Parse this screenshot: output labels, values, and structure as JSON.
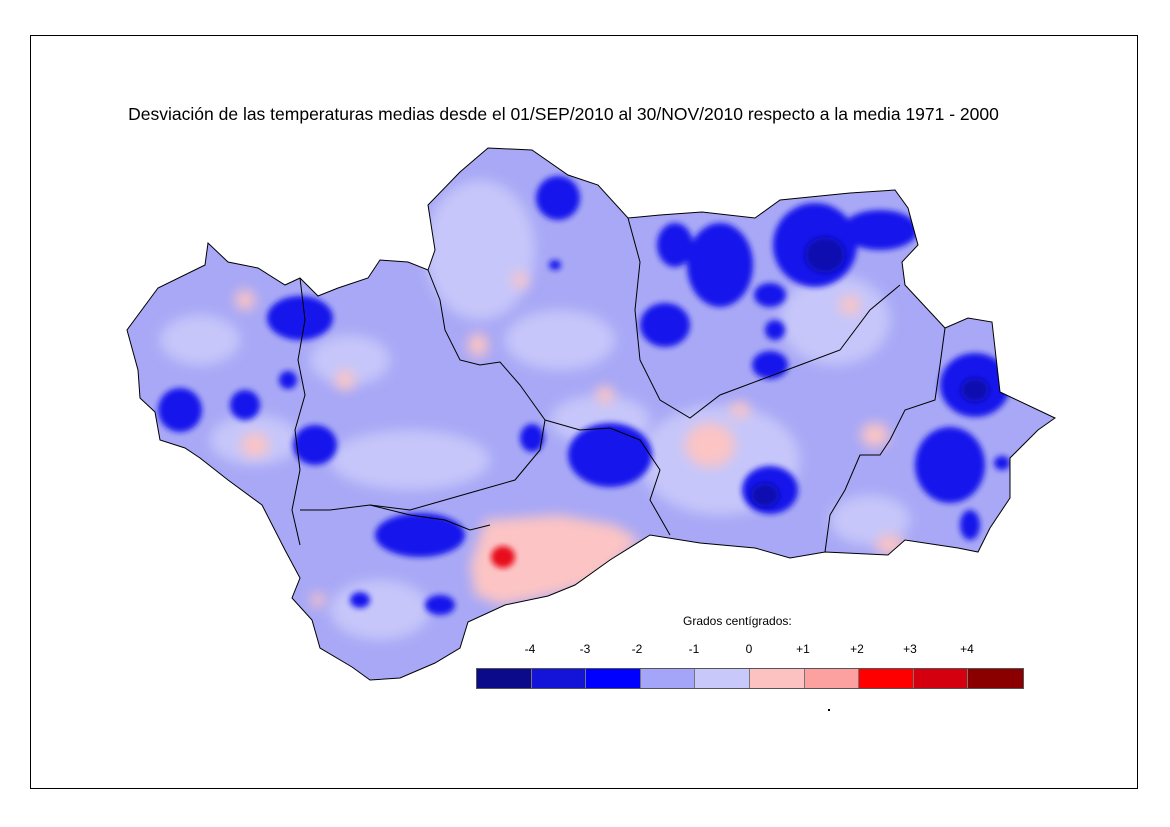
{
  "title": "Desviación de las temperaturas medias desde el 01/SEP/2010 al 30/NOV/2010 respecto a la media 1971 - 2000",
  "legend": {
    "title": "Grados centígrados:",
    "ticks": [
      "-4",
      "-3",
      "-2",
      "-1",
      "0",
      "+1",
      "+2",
      "+3",
      "+4"
    ],
    "colors": [
      "#0a0a8a",
      "#1414d8",
      "#0000ff",
      "#a4a4f8",
      "#c8c8fa",
      "#fcc2c2",
      "#fca0a0",
      "#ff0000",
      "#d40010",
      "#8a0000"
    ]
  },
  "map_colors": {
    "base": "#a8a8f6",
    "light": "#c6c6fa",
    "cold": "#1818ec",
    "very_cold": "#0a0ab0",
    "warm": "#fcc4c4",
    "hot": "#e8101a"
  }
}
